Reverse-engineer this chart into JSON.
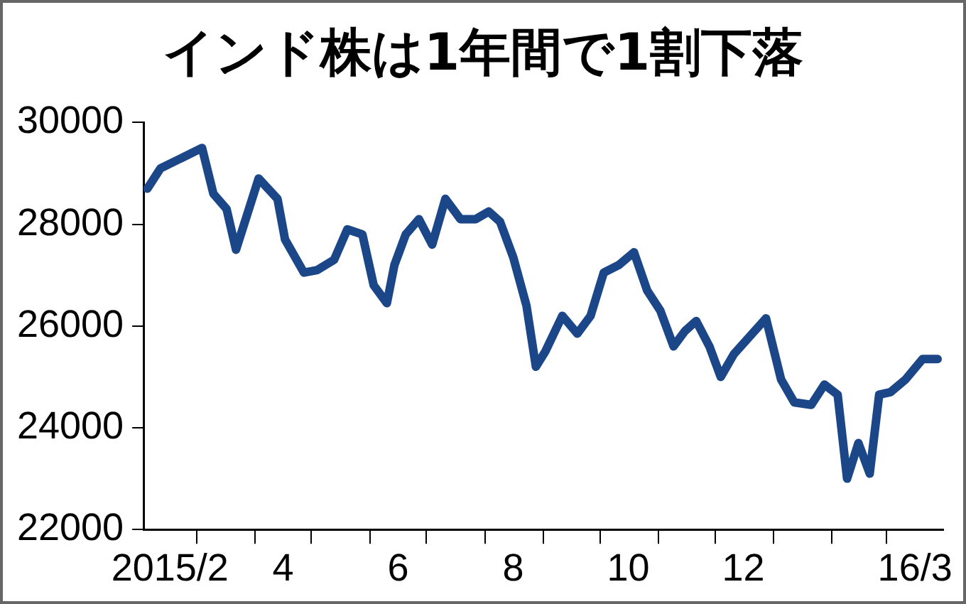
{
  "chart_data": {
    "type": "line",
    "title": "インド株は1年間で1割下落",
    "x": [
      "2015-02-03",
      "2015-02-10",
      "2015-02-21",
      "2015-03-04",
      "2015-03-10",
      "2015-03-17",
      "2015-03-22",
      "2015-04-03",
      "2015-04-13",
      "2015-04-17",
      "2015-04-27",
      "2015-05-04",
      "2015-05-13",
      "2015-05-20",
      "2015-05-28",
      "2015-06-03",
      "2015-06-10",
      "2015-06-14",
      "2015-06-20",
      "2015-06-27",
      "2015-07-04",
      "2015-07-11",
      "2015-07-19",
      "2015-07-27",
      "2015-08-03",
      "2015-08-09",
      "2015-08-16",
      "2015-08-23",
      "2015-08-28",
      "2015-09-02",
      "2015-09-11",
      "2015-09-19",
      "2015-09-26",
      "2015-10-03",
      "2015-10-11",
      "2015-10-19",
      "2015-10-26",
      "2015-11-02",
      "2015-11-09",
      "2015-11-15",
      "2015-11-21",
      "2015-11-28",
      "2015-12-04",
      "2015-12-11",
      "2015-12-28",
      "2016-01-05",
      "2016-01-12",
      "2016-01-21",
      "2016-01-28",
      "2016-02-04",
      "2016-02-09",
      "2016-02-15",
      "2016-02-21",
      "2016-02-26",
      "2016-03-03",
      "2016-03-11",
      "2016-03-20",
      "2016-03-28"
    ],
    "series": [
      {
        "color": "#1b4788",
        "values": [
          28700,
          29100,
          29300,
          29500,
          28600,
          28300,
          27500,
          28900,
          28500,
          27700,
          27050,
          27100,
          27300,
          27900,
          27800,
          26800,
          26450,
          27200,
          27800,
          28100,
          27600,
          28500,
          28100,
          28100,
          28250,
          28050,
          27350,
          26400,
          25200,
          25500,
          26200,
          25850,
          26200,
          27050,
          27200,
          27450,
          26700,
          26300,
          25600,
          25900,
          26100,
          25600,
          25000,
          25450,
          26150,
          24950,
          24500,
          24450,
          24850,
          24650,
          23000,
          23700,
          23100,
          24650,
          24700,
          24950,
          25350,
          25350
        ]
      }
    ],
    "xlim": [
      "2015-02-01",
      "2016-03-31"
    ],
    "xticks": [
      {
        "value": "2015-02-15",
        "label": "2015/2"
      },
      {
        "value": "2015-03-01",
        "label": null
      },
      {
        "value": "2015-04-01",
        "label": null
      },
      {
        "value": "2015-04-16",
        "label": "4"
      },
      {
        "value": "2015-05-01",
        "label": null
      },
      {
        "value": "2015-06-01",
        "label": null
      },
      {
        "value": "2015-06-16",
        "label": "6"
      },
      {
        "value": "2015-07-01",
        "label": null
      },
      {
        "value": "2015-08-01",
        "label": null
      },
      {
        "value": "2015-08-16",
        "label": "8"
      },
      {
        "value": "2015-09-01",
        "label": null
      },
      {
        "value": "2015-10-01",
        "label": null
      },
      {
        "value": "2015-10-16",
        "label": "10"
      },
      {
        "value": "2015-11-01",
        "label": null
      },
      {
        "value": "2015-12-01",
        "label": null
      },
      {
        "value": "2015-12-16",
        "label": "12"
      },
      {
        "value": "2016-01-01",
        "label": null
      },
      {
        "value": "2016-02-01",
        "label": null
      },
      {
        "value": "2016-03-01",
        "label": null
      },
      {
        "value": "2016-03-16",
        "label": "16/3"
      }
    ],
    "ylim": [
      22000,
      30000
    ],
    "yticks": [
      22000,
      24000,
      26000,
      28000,
      30000
    ],
    "grid": false,
    "legend": false,
    "marker": "none",
    "line_style": "solid"
  }
}
